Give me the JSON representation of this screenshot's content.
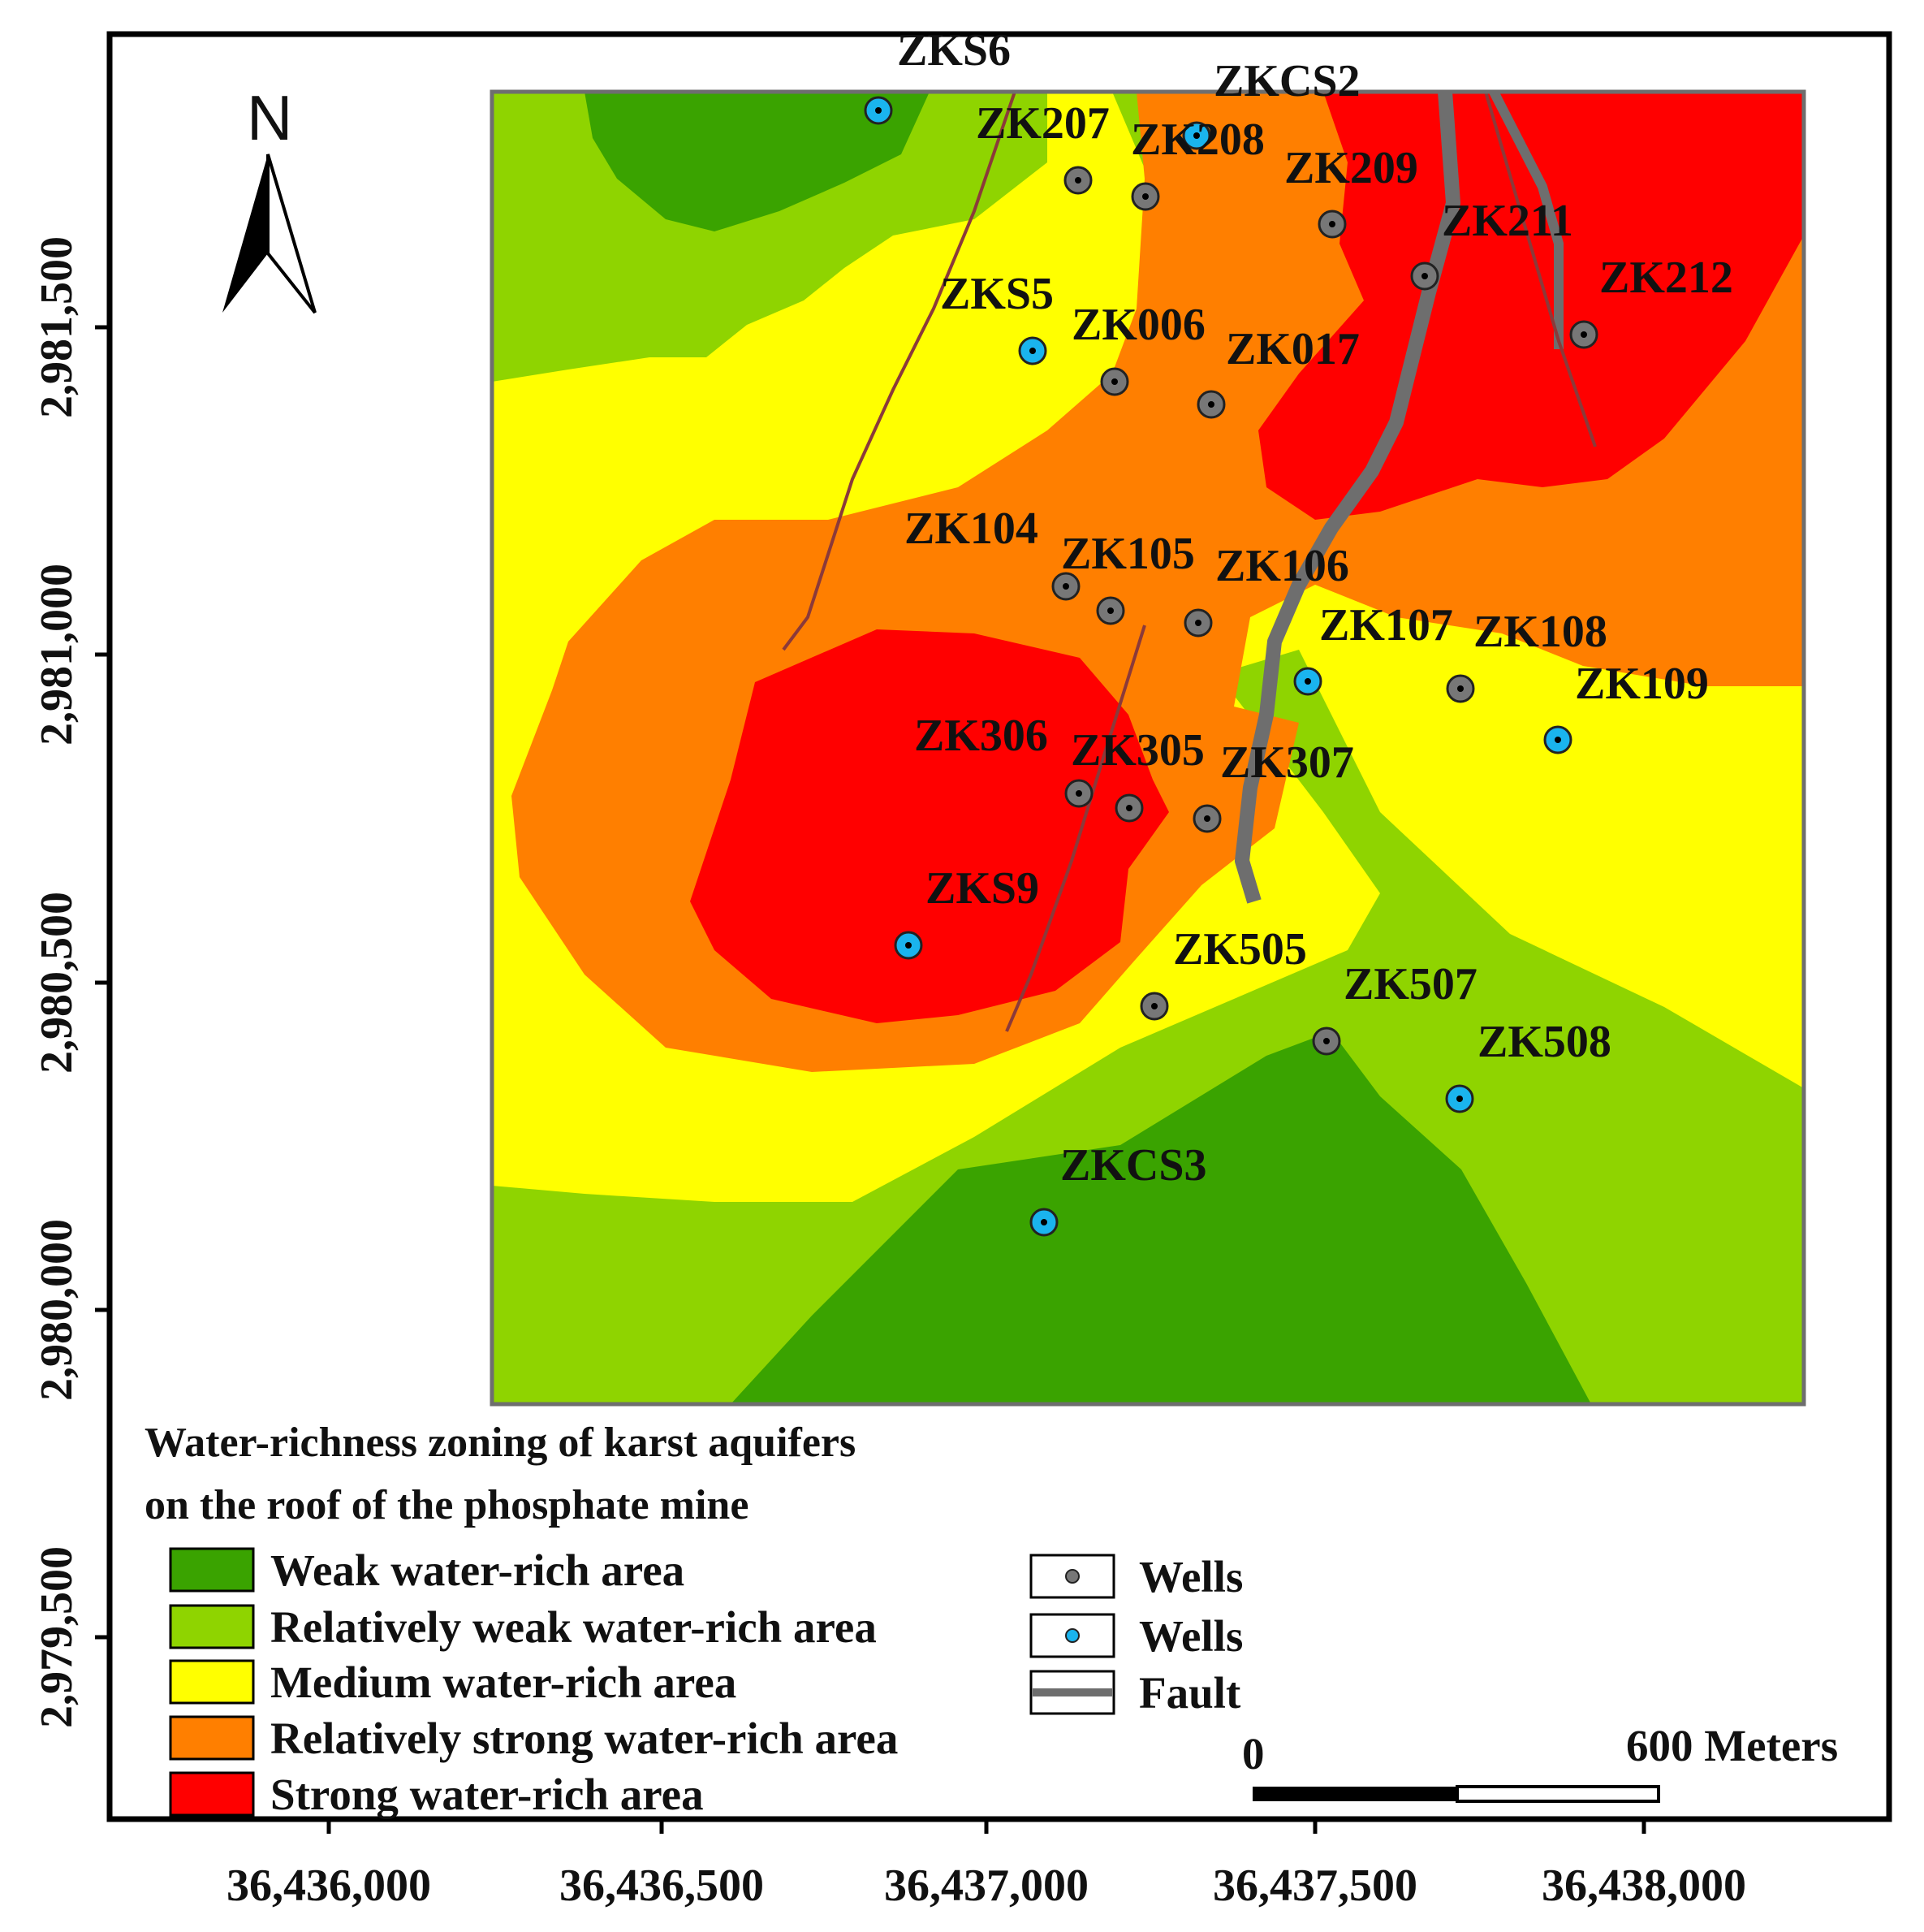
{
  "map": {
    "north_label": "N",
    "x_ticks": [
      "36,436,000",
      "36,436,500",
      "36,437,000",
      "36,437,500",
      "36,438,000"
    ],
    "y_ticks": [
      "2,981,500",
      "2,981,000",
      "2,980,500",
      "2,980,000",
      "2,979,500"
    ],
    "wells": [
      {
        "name": "ZKS6",
        "type": "blue"
      },
      {
        "name": "ZKCS2",
        "type": "blue"
      },
      {
        "name": "ZK207",
        "type": "gray"
      },
      {
        "name": "ZK208",
        "type": "gray"
      },
      {
        "name": "ZK209",
        "type": "gray"
      },
      {
        "name": "ZK211",
        "type": "gray"
      },
      {
        "name": "ZK212",
        "type": "gray"
      },
      {
        "name": "ZKS5",
        "type": "blue"
      },
      {
        "name": "ZK006",
        "type": "gray"
      },
      {
        "name": "ZK017",
        "type": "gray"
      },
      {
        "name": "ZK104",
        "type": "gray"
      },
      {
        "name": "ZK105",
        "type": "gray"
      },
      {
        "name": "ZK106",
        "type": "gray"
      },
      {
        "name": "ZK107",
        "type": "blue"
      },
      {
        "name": "ZK108",
        "type": "gray"
      },
      {
        "name": "ZK109",
        "type": "blue"
      },
      {
        "name": "ZK306",
        "type": "gray"
      },
      {
        "name": "ZK305",
        "type": "gray"
      },
      {
        "name": "ZK307",
        "type": "gray"
      },
      {
        "name": "ZKS9",
        "type": "blue"
      },
      {
        "name": "ZK505",
        "type": "gray"
      },
      {
        "name": "ZK507",
        "type": "gray"
      },
      {
        "name": "ZK508",
        "type": "blue"
      },
      {
        "name": "ZKCS3",
        "type": "blue"
      }
    ]
  },
  "legend": {
    "title_line1": "Water-richness zoning of karst aquifers",
    "title_line2": "on the roof of the phosphate mine",
    "zones": [
      {
        "label": "Weak water-rich area",
        "color": "#3aa300"
      },
      {
        "label": "Relatively weak water-rich area",
        "color": "#8fd400"
      },
      {
        "label": "Medium water-rich area",
        "color": "#ffff00"
      },
      {
        "label": "Relatively strong water-rich area",
        "color": "#ff7f00"
      },
      {
        "label": "Strong water-rich area",
        "color": "#ff0000"
      }
    ],
    "symbols": [
      {
        "label": "Wells",
        "kind": "gray-well"
      },
      {
        "label": "Wells",
        "kind": "blue-well"
      },
      {
        "label": "Fault",
        "kind": "fault"
      }
    ]
  },
  "scale_bar": {
    "zero_label": "0",
    "end_label": "600 Meters"
  },
  "colors": {
    "gray_well": "#777777",
    "blue_well": "#1ab4ee",
    "fault": "#6e6e6e",
    "thin_fault": "#8b3a3a"
  }
}
